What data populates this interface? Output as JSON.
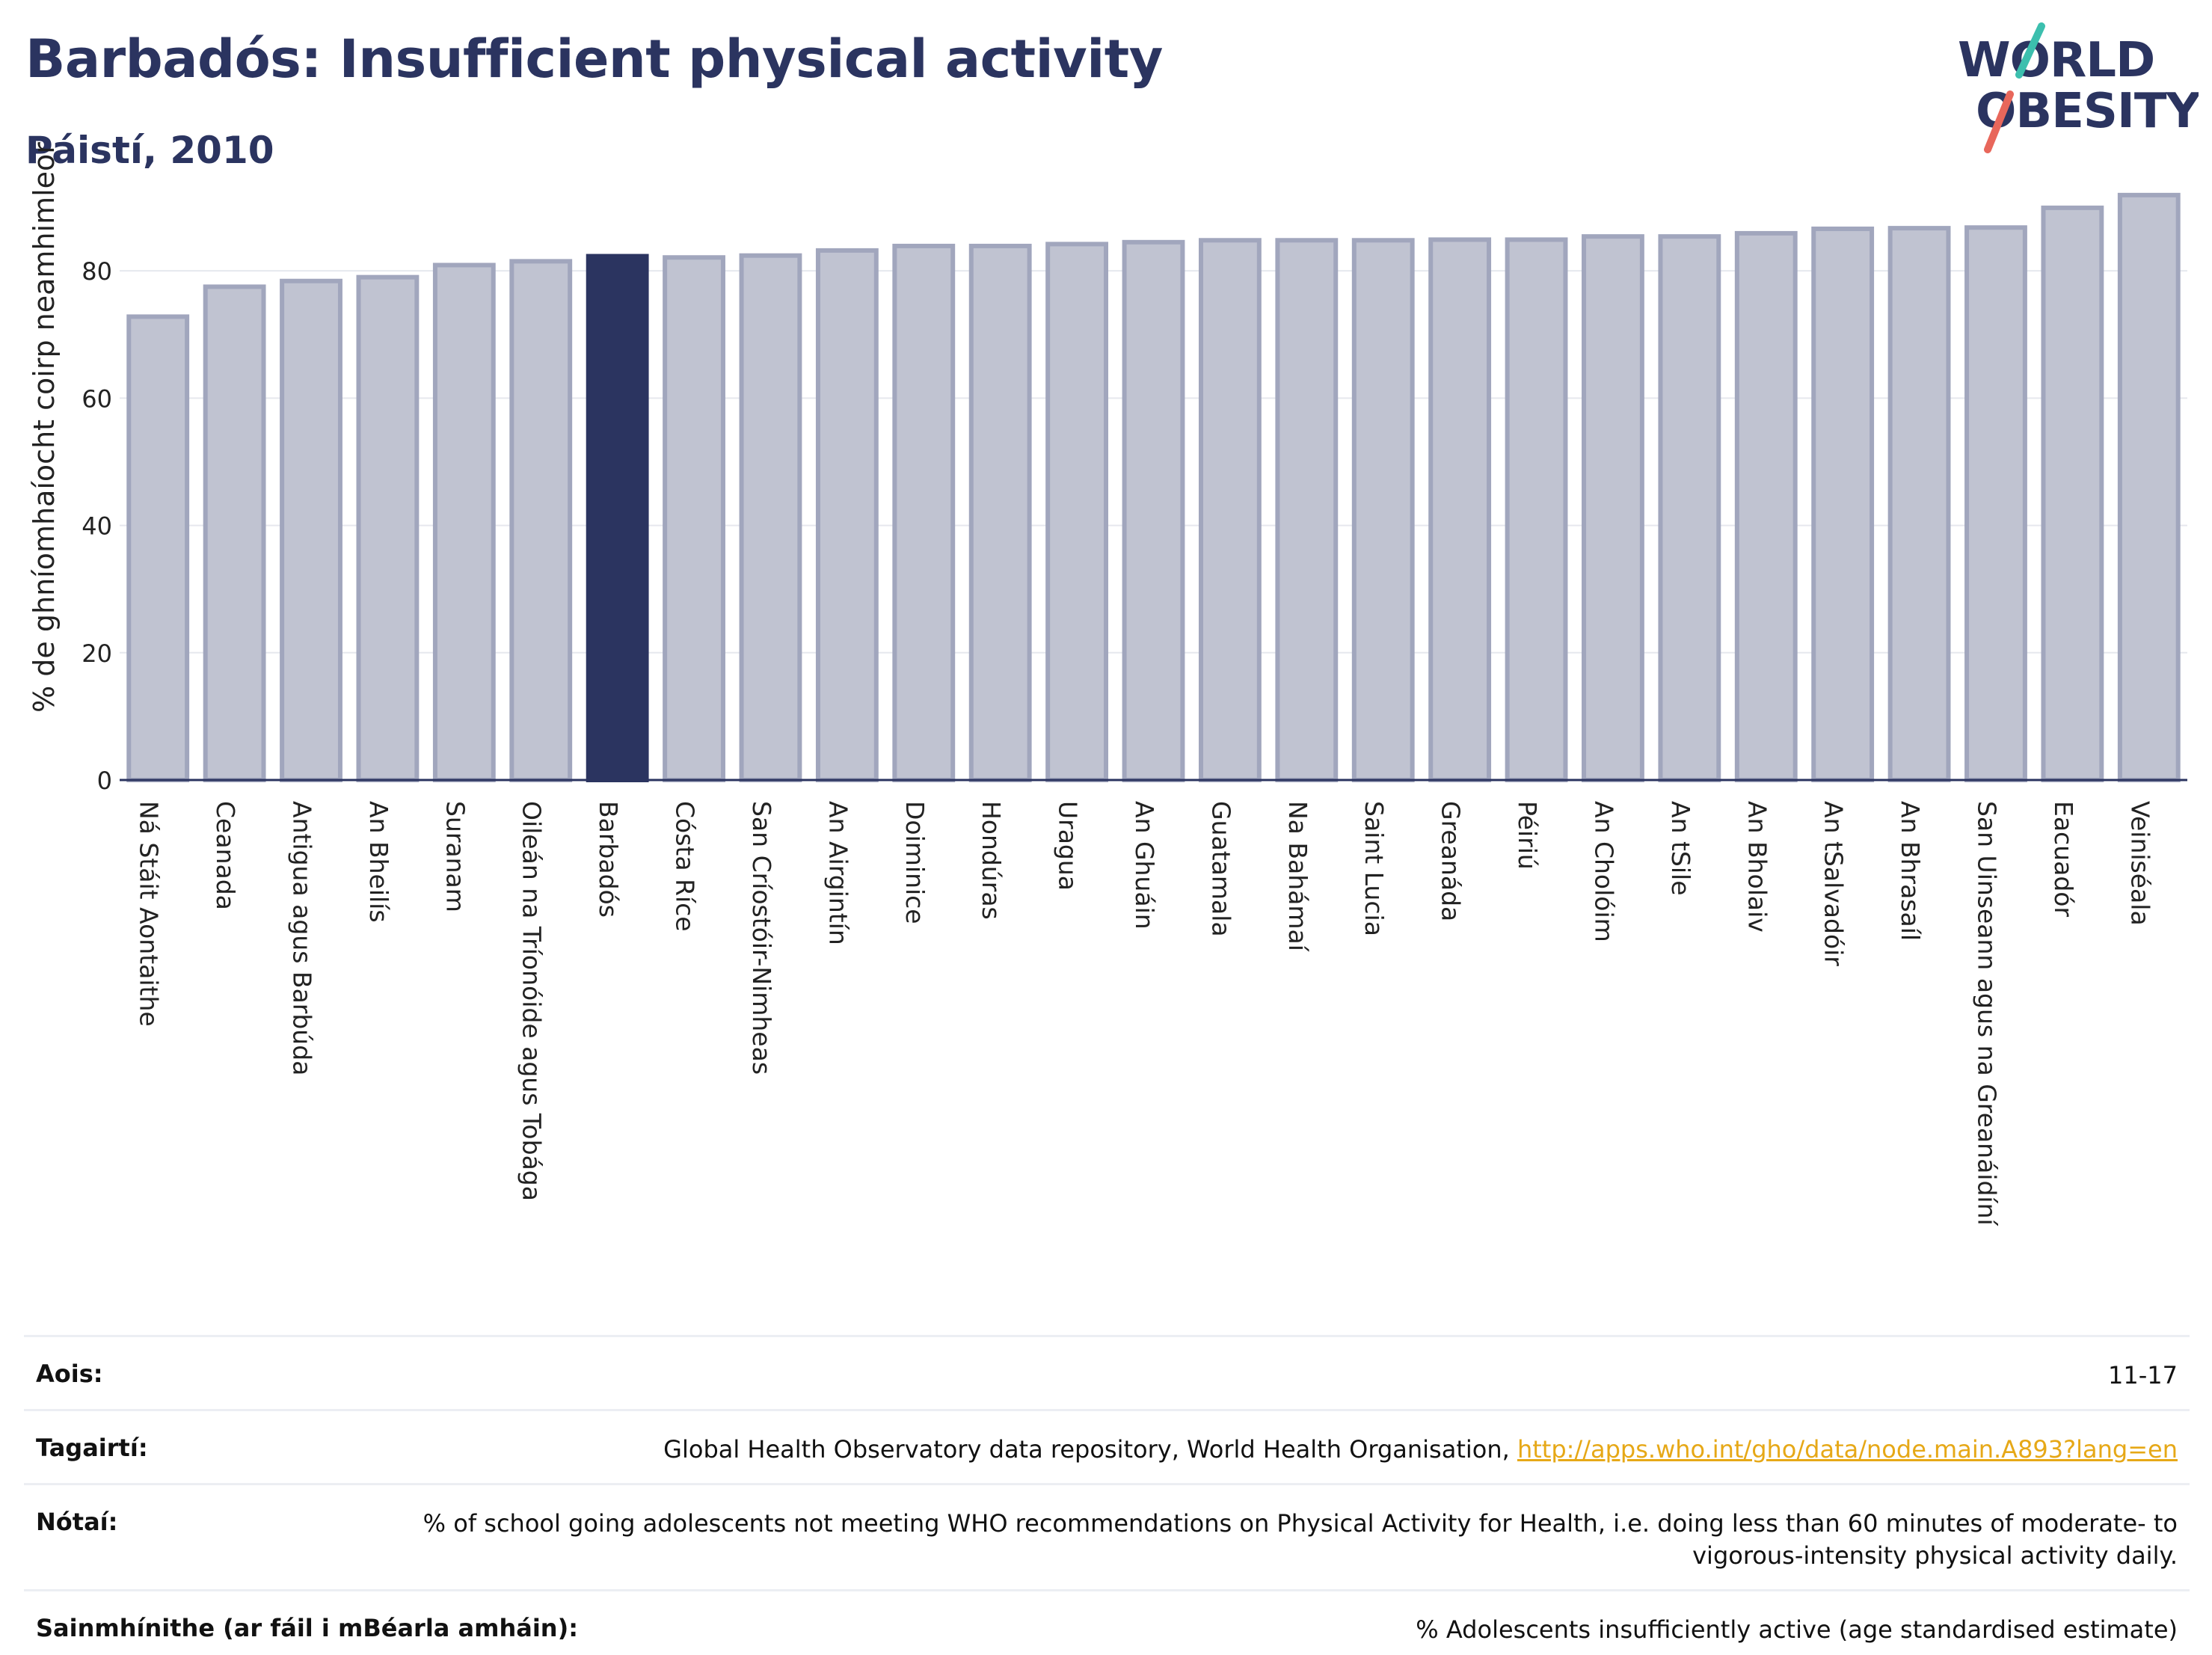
{
  "header": {
    "title": "Barbadós: Insufficient physical activity",
    "subtitle": "Páistí, 2010"
  },
  "logo": {
    "line1": "WORLD",
    "line2": "OBESITY",
    "colors": {
      "text": "#2b3460",
      "slash_top": "#3cbfae",
      "slash_bottom": "#e8675b"
    }
  },
  "colors": {
    "bar": "#c0c3d1",
    "bar_border": "#a1a6bd",
    "highlight": "#2b3460",
    "axis": "#2b3460",
    "grid": "#e6e8ee"
  },
  "chart_data": {
    "type": "bar",
    "ylabel": "% de ghníomhaíocht coirp neamhimleor",
    "ylim": [
      0,
      92
    ],
    "yticks": [
      0,
      20,
      40,
      60,
      80
    ],
    "grid": true,
    "highlight": "Barbadós",
    "categories": [
      "Ná Stáit Aontaithe",
      "Ceanada",
      "Antigua agus Barbúda",
      "An Bheilís",
      "Suranam",
      "Oileán na Tríonóide agus Tobága",
      "Barbadós",
      "Cósta Ríce",
      "San Críostóir-Nimheas",
      "An Airgintín",
      "Doiminice",
      "Hondúras",
      "Uragua",
      "An Ghuáin",
      "Guatamala",
      "Na Bahámaí",
      "Saint Lucia",
      "Greanáda",
      "Péiriú",
      "An Cholóim",
      "An tSile",
      "An Bholaiv",
      "An tSalvadóir",
      "An Bhrasaíl",
      "San Uinseann agus na Greanáidíní",
      "Eacuadór",
      "Veiniséala"
    ],
    "values": [
      72.8,
      77.5,
      78.4,
      79.0,
      80.9,
      81.5,
      82.3,
      82.1,
      82.4,
      83.2,
      83.9,
      83.9,
      84.2,
      84.5,
      84.8,
      84.8,
      84.8,
      84.9,
      84.9,
      85.4,
      85.4,
      85.9,
      86.6,
      86.7,
      86.8,
      89.9,
      91.9
    ]
  },
  "info": {
    "rows": [
      {
        "label": "Aois:",
        "value": "11-17"
      },
      {
        "label": "Tagairtí:",
        "value": "Global Health Observatory data repository, World Health Organisation, ",
        "link": "http://apps.who.int/gho/data/node.main.A893?lang=en"
      },
      {
        "label": "Nótaí:",
        "value": "% of school going adolescents not meeting WHO recommendations on Physical Activity for Health, i.e. doing less than 60 minutes of moderate- to vigorous-intensity physical activity daily."
      },
      {
        "label": "Sainmhínithe (ar fáil i mBéarla amháin):",
        "value": "% Adolescents insufficiently active (age standardised estimate)"
      }
    ]
  }
}
